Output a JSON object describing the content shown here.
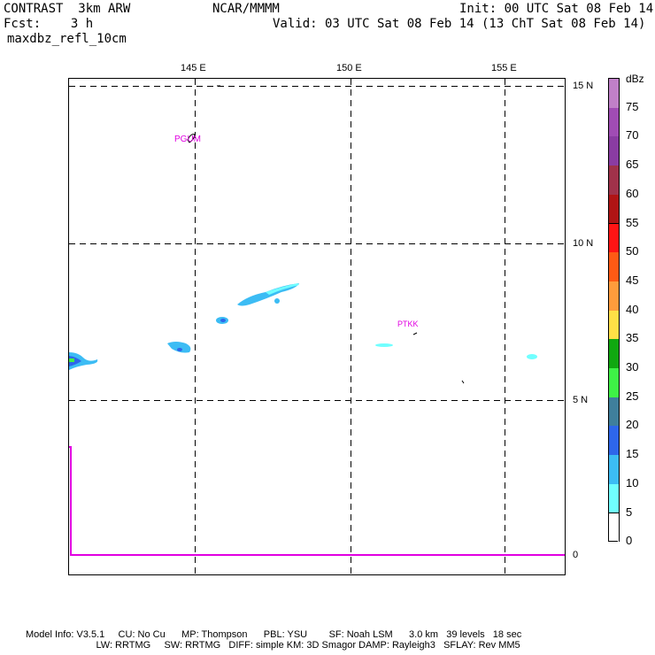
{
  "header": {
    "model": "CONTRAST  3km ARW",
    "org": "NCAR/MMMM",
    "init": "Init: 00 UTC Sat 08 Feb 14",
    "fcst": "Fcst:    3 h",
    "valid": "Valid: 03 UTC Sat 08 Feb 14 (13 ChT Sat 08 Feb 14)",
    "field": "maxdbz_refl_10cm"
  },
  "map": {
    "lon_labels": [
      "145 E",
      "150 E",
      "155 E"
    ],
    "lat_labels": [
      "15 N",
      "10 N",
      "5 N",
      "0"
    ],
    "stations": [
      "PGUM",
      "PTKK"
    ],
    "boundary_color": "#e100e1"
  },
  "colorbar": {
    "unit": "dBz",
    "levels": [
      "75",
      "70",
      "65",
      "60",
      "55",
      "50",
      "45",
      "40",
      "35",
      "30",
      "25",
      "20",
      "15",
      "10",
      "5",
      "0"
    ],
    "colors": [
      "#ffffff",
      "#70ffff",
      "#3cbcf4",
      "#2e66ea",
      "#3f7f9c",
      "#3ef246",
      "#10a810",
      "#ffe046",
      "#ff9c3c",
      "#ff5a14",
      "#ff1414",
      "#b01414",
      "#a0324a",
      "#8a3ca2",
      "#a04cb4",
      "#c080c8"
    ]
  },
  "footer": {
    "line1": "Model Info: V3.5.1     CU: No Cu      MP: Thompson      PBL: YSU        SF: Noah LSM      3.0 km   39 levels   18 sec",
    "line2": "                          LW: RRTMG     SW: RRTMG   DIFF: simple KM: 3D Smagor DAMP: Rayleigh3   SFLAY: Rev MM5"
  }
}
